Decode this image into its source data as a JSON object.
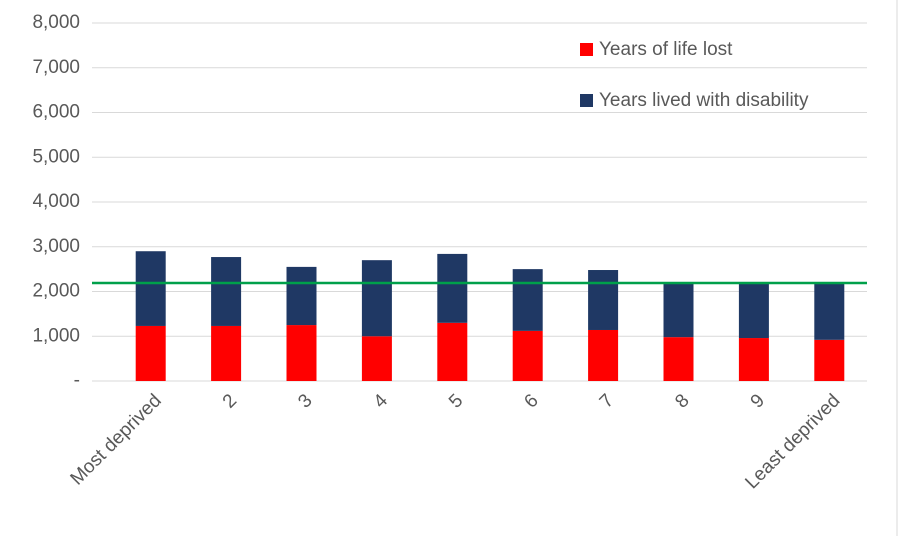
{
  "chart_data": {
    "type": "stacked_bar",
    "categories": [
      "Most deprived",
      "2",
      "3",
      "4",
      "5",
      "6",
      "7",
      "8",
      "9",
      "Least deprived"
    ],
    "series": [
      {
        "name": "Years of life lost",
        "color": "#ff0000",
        "values": [
          1230,
          1230,
          1250,
          1000,
          1300,
          1120,
          1140,
          980,
          960,
          920
        ]
      },
      {
        "name": "Years lived with disability",
        "color": "#1f3864",
        "values": [
          1670,
          1540,
          1300,
          1700,
          1540,
          1380,
          1340,
          1190,
          1210,
          1250
        ]
      }
    ],
    "reference_line": {
      "value": 2190,
      "color": "#00a04a"
    },
    "ylim": [
      0,
      8000
    ],
    "yticks": [
      {
        "value": 0,
        "label": "-"
      },
      {
        "value": 1000,
        "label": "1,000"
      },
      {
        "value": 2000,
        "label": "2,000"
      },
      {
        "value": 3000,
        "label": "3,000"
      },
      {
        "value": 4000,
        "label": "4,000"
      },
      {
        "value": 5000,
        "label": "5,000"
      },
      {
        "value": 6000,
        "label": "6,000"
      },
      {
        "value": 7000,
        "label": "7,000"
      },
      {
        "value": 8000,
        "label": "8,000"
      }
    ],
    "grid": true
  }
}
